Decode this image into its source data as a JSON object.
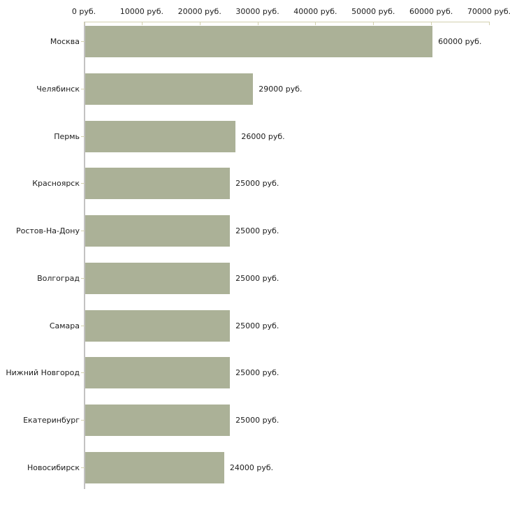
{
  "chart_data": {
    "type": "bar",
    "orientation": "horizontal",
    "title": "",
    "xlabel": "",
    "ylabel": "",
    "xlim": [
      0,
      70000
    ],
    "grid": false,
    "legend": false,
    "x_ticks": [
      0,
      10000,
      20000,
      30000,
      40000,
      50000,
      60000,
      70000
    ],
    "x_tick_labels": [
      "0 руб.",
      "10000 руб.",
      "20000 руб.",
      "30000 руб.",
      "40000 руб.",
      "50000 руб.",
      "60000 руб.",
      "70000 руб."
    ],
    "categories": [
      "Москва",
      "Челябинск",
      "Пермь",
      "Красноярск",
      "Ростов-На-Дону",
      "Волгоград",
      "Самара",
      "Нижний Новгород",
      "Екатеринбург",
      "Новосибирск"
    ],
    "values": [
      60000,
      29000,
      26000,
      25000,
      25000,
      25000,
      25000,
      25000,
      25000,
      24000
    ],
    "value_labels": [
      "60000 руб.",
      "29000 руб.",
      "26000 руб.",
      "25000 руб.",
      "25000 руб.",
      "25000 руб.",
      "25000 руб.",
      "25000 руб.",
      "25000 руб.",
      "24000 руб."
    ],
    "colors": {
      "bar": "#abb197",
      "axis_tick": "#d2d0ae",
      "category_axis_line": "#c3c2c2",
      "text": "#1c1c1c",
      "background": "#ffffff"
    }
  }
}
